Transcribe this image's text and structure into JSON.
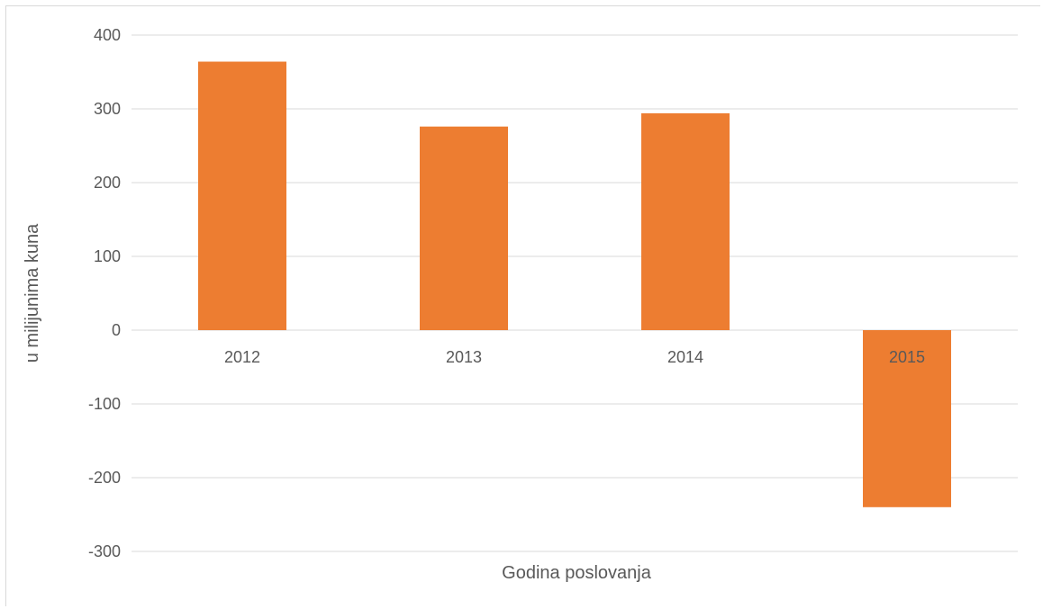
{
  "chart_data": {
    "type": "bar",
    "categories": [
      "2012",
      "2013",
      "2014",
      "2015"
    ],
    "values": [
      364,
      276,
      294,
      -240
    ],
    "title": "",
    "xlabel": "Godina poslovanja",
    "ylabel": "u milijunima kuna",
    "ylim": [
      -300,
      400
    ],
    "yticks": [
      "400",
      "300",
      "200",
      "100",
      "0",
      "-100",
      "-200",
      "-300"
    ],
    "grid": true,
    "legend": "none",
    "colors": {
      "bar": "#ed7d31",
      "grid": "#d9d9d9",
      "text": "#595959"
    }
  }
}
